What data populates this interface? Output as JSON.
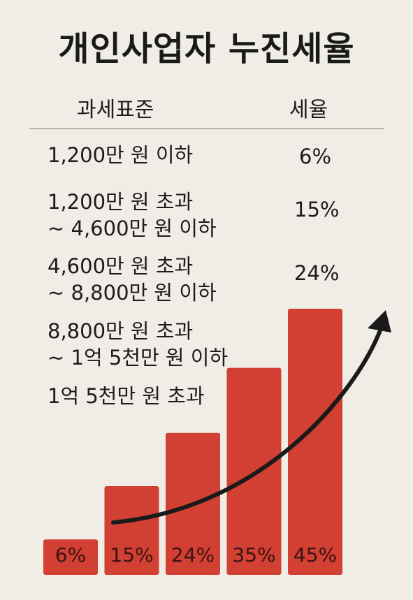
{
  "title": "개인사업자 누진세율",
  "table": {
    "header_bracket": "과세표준",
    "header_rate": "세율",
    "rows": [
      {
        "lines": [
          "1,200만 원 이하"
        ],
        "rate": "6%"
      },
      {
        "lines": [
          "1,200만 원 초과",
          "~ 4,600만 원 이하"
        ],
        "rate": "15%"
      },
      {
        "lines": [
          "4,600만 원 초과",
          "~ 8,800만 원 이하"
        ],
        "rate": "24%"
      },
      {
        "lines": [
          "8,800만 원 초과",
          "~ 1억 5천만 원 이하"
        ],
        "rate": ""
      },
      {
        "lines": [
          "1억 5천만 원 초과"
        ],
        "rate": ""
      }
    ]
  },
  "chart_data": {
    "type": "bar",
    "categories": [
      "1,200만 원 이하",
      "1,200만 원 초과 ~ 4,600만 원 이하",
      "4,600만 원 초과 ~ 8,800만 원 이하",
      "8,800만 원 초과 ~ 1억 5천만 원 이하",
      "1억 5천만 원 초과"
    ],
    "values": [
      6,
      15,
      24,
      35,
      45
    ],
    "labels": [
      "6%",
      "15%",
      "24%",
      "35%",
      "45%"
    ],
    "bar_color": "#d23f33",
    "arrow_color": "#1a1a1a",
    "grid": false,
    "legend": "none"
  },
  "colors": {
    "background": "#f0ece6",
    "text": "#1c1c1c",
    "divider": "#b5b1ab"
  }
}
